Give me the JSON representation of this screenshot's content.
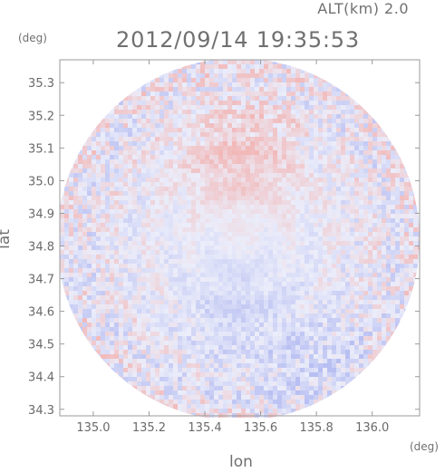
{
  "header": {
    "alt_label": "ALT(km) 2.0",
    "timestamp": "2012/09/14 19:35:53"
  },
  "chart_data": {
    "type": "heatmap",
    "title": "2012/09/14 19:35:53",
    "subtitle": "ALT(km) 2.0",
    "xlabel": "lon",
    "ylabel": "lat",
    "x_unit": "(deg)",
    "y_unit": "(deg)",
    "xlim": [
      134.88,
      136.17
    ],
    "ylim": [
      34.28,
      35.37
    ],
    "x_ticks": [
      135.0,
      135.2,
      135.4,
      135.6,
      135.8,
      136.0
    ],
    "x_tick_labels": [
      "135.0",
      "135.2",
      "135.4",
      "135.6",
      "135.8",
      "136.0"
    ],
    "y_ticks": [
      34.3,
      34.4,
      34.5,
      34.6,
      34.7,
      34.8,
      34.9,
      35.0,
      35.1,
      35.2,
      35.3
    ],
    "y_tick_labels": [
      "34.3",
      "34.4",
      "34.5",
      "34.6",
      "34.7",
      "34.8",
      "34.9",
      "35.0",
      "35.1",
      "35.2",
      "35.3"
    ],
    "grid": false,
    "domain": {
      "shape": "circle",
      "center": [
        135.52,
        34.82
      ],
      "radius_deg_lon": 0.65
    },
    "colors": {
      "positive": "#f2b8b8",
      "negative": "#b8bff2",
      "neutral": "#ebedfa",
      "frame": "#9a9a9a"
    },
    "features": [
      {
        "name": "positive-patch-north",
        "center": [
          135.52,
          35.08
        ],
        "strength": 0.7
      },
      {
        "name": "negative-patch-south",
        "center": [
          135.5,
          34.62
        ],
        "strength": -0.45
      },
      {
        "name": "negative-patch-southeast",
        "center": [
          135.82,
          34.42
        ],
        "strength": -0.5
      }
    ]
  }
}
